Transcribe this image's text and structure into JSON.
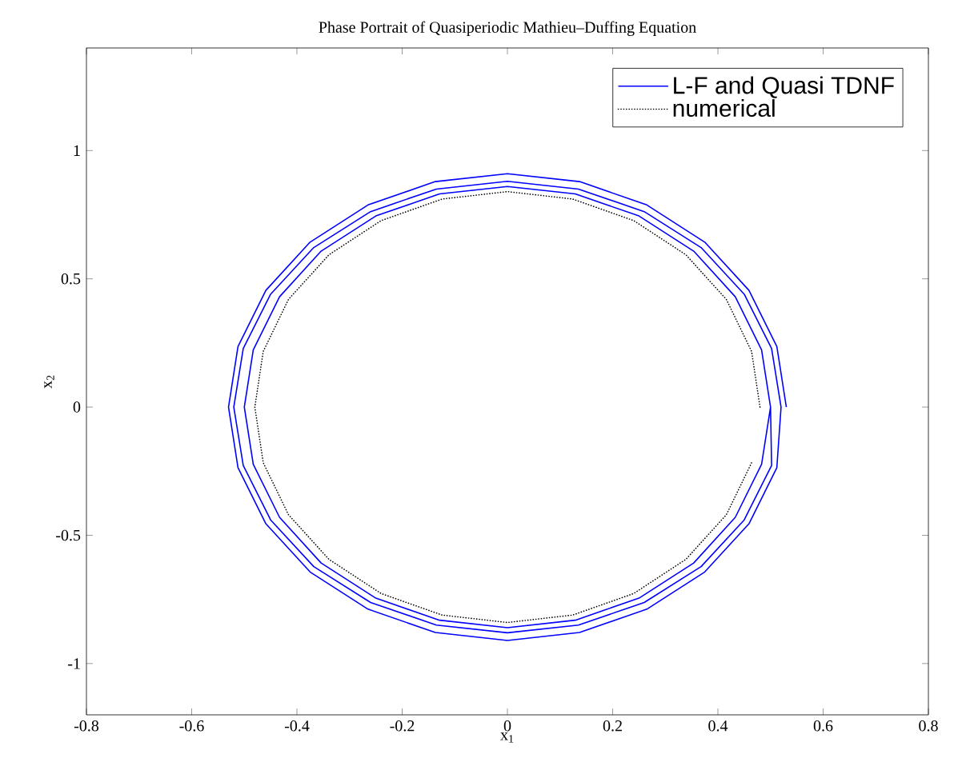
{
  "chart_data": {
    "type": "line",
    "title": "Phase Portrait of Quasiperiodic Mathieu–Duffing Equation",
    "xlabel": "x$_{1}$",
    "ylabel": "x$_{2}$",
    "xlim": [
      -0.8,
      0.8
    ],
    "ylim": [
      -1.2,
      1.4
    ],
    "xticks": [
      -0.8,
      -0.6,
      -0.4,
      -0.2,
      0,
      0.2,
      0.4,
      0.6,
      0.8
    ],
    "yticks": [
      -1,
      -0.5,
      0,
      0.5,
      1
    ],
    "grid": false,
    "legend": "top right",
    "marker": "none",
    "series": [
      {
        "name": "L-F and Quasi TDNF",
        "color": "#0000ff",
        "line_style": "solid",
        "x": [
          0.53,
          0.512,
          0.459,
          0.375,
          0.265,
          0.137,
          0,
          -0.137,
          -0.265,
          -0.375,
          -0.459,
          -0.512,
          -0.53,
          -0.512,
          -0.459,
          -0.375,
          -0.265,
          -0.137,
          0,
          0.137,
          0.265,
          0.375,
          0.459,
          0.512,
          0.52,
          0.502,
          0.45,
          0.368,
          0.26,
          0.135,
          0,
          -0.135,
          -0.26,
          -0.368,
          -0.45,
          -0.502,
          -0.52,
          -0.502,
          -0.45,
          -0.368,
          -0.26,
          -0.135,
          0,
          0.135,
          0.26,
          0.368,
          0.45,
          0.502,
          0.5,
          0.483,
          0.433,
          0.354,
          0.25,
          0.129,
          0,
          -0.129,
          -0.25,
          -0.354,
          -0.433,
          -0.483,
          -0.5,
          -0.483,
          -0.433,
          -0.354,
          -0.25,
          -0.129,
          0,
          0.129,
          0.25,
          0.354,
          0.433,
          0.483,
          0.5
        ],
        "values": [
          0,
          0.236,
          0.455,
          0.643,
          0.788,
          0.879,
          0.91,
          0.879,
          0.788,
          0.643,
          0.455,
          0.236,
          0,
          -0.236,
          -0.455,
          -0.643,
          -0.788,
          -0.879,
          -0.91,
          -0.879,
          -0.788,
          -0.643,
          -0.455,
          -0.236,
          0,
          0.228,
          0.44,
          0.622,
          0.762,
          0.85,
          0.88,
          0.85,
          0.762,
          0.622,
          0.44,
          0.228,
          0,
          -0.228,
          -0.44,
          -0.622,
          -0.762,
          -0.85,
          -0.88,
          -0.85,
          -0.762,
          -0.622,
          -0.44,
          -0.228,
          0,
          0.223,
          0.43,
          0.608,
          0.745,
          0.831,
          0.86,
          0.831,
          0.745,
          0.608,
          0.43,
          0.223,
          0,
          -0.223,
          -0.43,
          -0.608,
          -0.745,
          -0.831,
          -0.86,
          -0.831,
          -0.745,
          -0.608,
          -0.43,
          -0.223,
          0
        ]
      },
      {
        "name": "numerical",
        "color": "#000000",
        "line_style": "dotted",
        "x": [
          0.48,
          0.464,
          0.416,
          0.339,
          0.24,
          0.124,
          0,
          -0.124,
          -0.24,
          -0.339,
          -0.416,
          -0.464,
          -0.48,
          -0.464,
          -0.416,
          -0.339,
          -0.24,
          -0.124,
          0,
          0.124,
          0.24,
          0.339,
          0.416,
          0.464
        ],
        "values": [
          0,
          0.217,
          0.42,
          0.594,
          0.727,
          0.811,
          0.84,
          0.811,
          0.727,
          0.594,
          0.42,
          0.217,
          0,
          -0.217,
          -0.42,
          -0.594,
          -0.727,
          -0.811,
          -0.84,
          -0.811,
          -0.727,
          -0.594,
          -0.42,
          -0.217
        ]
      }
    ]
  }
}
